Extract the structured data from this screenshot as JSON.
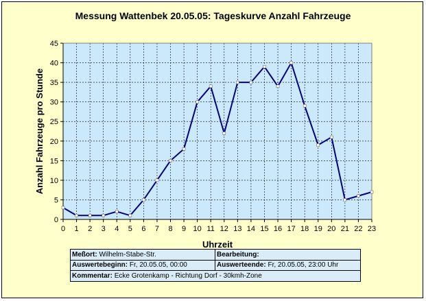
{
  "chart_data": {
    "type": "line",
    "title": "Messung Wattenbek 20.05.05: Tageskurve Anzahl Fahrzeuge",
    "xlabel": "Uhrzeit",
    "ylabel": "Anzahl Fahrzeuge pro Stunde",
    "x": [
      0,
      1,
      2,
      3,
      4,
      5,
      6,
      7,
      8,
      9,
      10,
      11,
      12,
      13,
      14,
      15,
      16,
      17,
      18,
      19,
      20,
      21,
      22,
      23
    ],
    "values": [
      3,
      1,
      1,
      1,
      2,
      1,
      5,
      10,
      15,
      18,
      30,
      34,
      22,
      35,
      35,
      39,
      34,
      40,
      29,
      19,
      21,
      5,
      6,
      7
    ],
    "xlim": [
      0,
      23
    ],
    "ylim": [
      0,
      45
    ],
    "yticks": [
      0,
      5,
      10,
      15,
      20,
      25,
      30,
      35,
      40,
      45
    ],
    "grid": true,
    "colors": {
      "line": "#000080",
      "plot_bg": "#cce8fb",
      "marker_fill": "#ffffff"
    }
  },
  "info": {
    "messort_label": "Meßort:",
    "messort_value": "Wilhelm-Stabe-Str.",
    "bearbeitung_label": "Bearbeitung:",
    "bearbeitung_value": "",
    "beginn_label": "Auswertebeginn:",
    "beginn_value": "Fr, 20.05.05, 00:00",
    "ende_label": "Auswerteende:",
    "ende_value": "Fr, 20.05.05, 23:00 Uhr",
    "kommentar_label": "Kommentar:",
    "kommentar_value": "Ecke Grotenkamp - Richtung Dorf - 30kmh-Zone"
  }
}
